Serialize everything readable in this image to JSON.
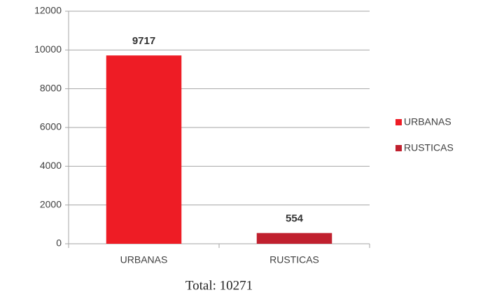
{
  "chart_data": {
    "type": "bar",
    "categories": [
      "URBANAS",
      "RUSTICAS"
    ],
    "values": [
      9717,
      554
    ],
    "colors": [
      "#ee1c25",
      "#c0202e"
    ],
    "ylim": [
      0,
      12000
    ],
    "yticks": [
      0,
      2000,
      4000,
      6000,
      8000,
      10000,
      12000
    ],
    "grid": true,
    "legend": "right",
    "annotation": "Total: 10271"
  }
}
